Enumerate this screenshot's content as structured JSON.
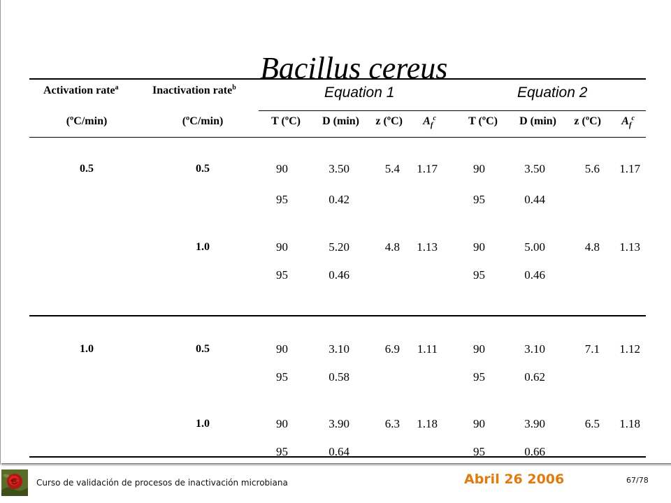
{
  "title": "Bacillus cereus",
  "header": {
    "activation_rate": "Activation rate",
    "activation_sup": "a",
    "inactivation_rate": "Inactivation rate",
    "inactivation_sup": "b",
    "equation1": "Equation 1",
    "equation2": "Equation 2",
    "units_activation": "(ºC/min)",
    "units_inactivation": "(ºC/min)",
    "col_T": "T (ºC)",
    "col_D": "D (min)",
    "col_z": "z (ºC)",
    "col_Af_base": "A",
    "col_Af_sub": "f",
    "col_Af_sup": "c"
  },
  "rows": [
    {
      "act": "0.5",
      "inact": "0.5",
      "t1": "90",
      "d1": "3.50",
      "z1": "5.4",
      "a1": "1.17",
      "t2": "90",
      "d2": "3.50",
      "z2": "5.6",
      "a2": "1.17"
    },
    {
      "act": "",
      "inact": "",
      "t1": "95",
      "d1": "0.42",
      "z1": "",
      "a1": "",
      "t2": "95",
      "d2": "0.44",
      "z2": "",
      "a2": ""
    },
    {
      "act": "",
      "inact": "1.0",
      "t1": "90",
      "d1": "5.20",
      "z1": "4.8",
      "a1": "1.13",
      "t2": "90",
      "d2": "5.00",
      "z2": "4.8",
      "a2": "1.13"
    },
    {
      "act": "",
      "inact": "",
      "t1": "95",
      "d1": "0.46",
      "z1": "",
      "a1": "",
      "t2": "95",
      "d2": "0.46",
      "z2": "",
      "a2": ""
    },
    {
      "act": "1.0",
      "inact": "0.5",
      "t1": "90",
      "d1": "3.10",
      "z1": "6.9",
      "a1": "1.11",
      "t2": "90",
      "d2": "3.10",
      "z2": "7.1",
      "a2": "1.12"
    },
    {
      "act": "",
      "inact": "",
      "t1": "95",
      "d1": "0.58",
      "z1": "",
      "a1": "",
      "t2": "95",
      "d2": "0.62",
      "z2": "",
      "a2": ""
    },
    {
      "act": "",
      "inact": "1.0",
      "t1": "90",
      "d1": "3.90",
      "z1": "6.3",
      "a1": "1.18",
      "t2": "90",
      "d2": "3.90",
      "z2": "6.5",
      "a2": "1.18"
    },
    {
      "act": "",
      "inact": "",
      "t1": "95",
      "d1": "0.64",
      "z1": "",
      "a1": "",
      "t2": "95",
      "d2": "0.66",
      "z2": "",
      "a2": ""
    }
  ],
  "footer": {
    "course": "Curso de validación de procesos de inactivación microbiana",
    "date": "Abril 26 2006",
    "page": "67/78"
  },
  "colors": {
    "date": "#e07b10",
    "rule": "#000000"
  }
}
